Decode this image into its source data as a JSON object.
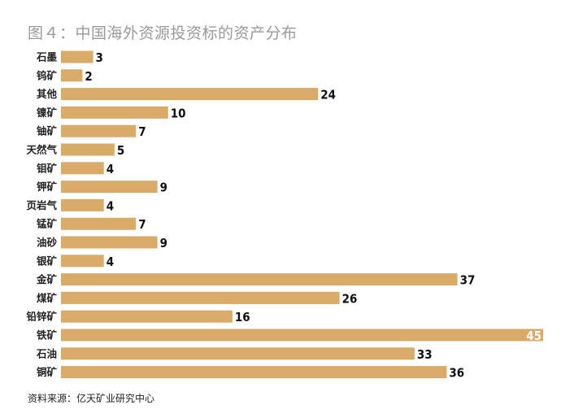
{
  "title": "图４：中国海外资源投资标的资产分布",
  "source": "资料来源：亿天矿业研究中心",
  "chart_data": {
    "type": "bar",
    "orientation": "horizontal",
    "title": "图４：中国海外资源投资标的资产分布",
    "categories": [
      "石墨",
      "钨矿",
      "其他",
      "镍矿",
      "铀矿",
      "天然气",
      "钼矿",
      "钾矿",
      "页岩气",
      "锰矿",
      "油砂",
      "银矿",
      "金矿",
      "煤矿",
      "铅锌矿",
      "铁矿",
      "石油",
      "铜矿"
    ],
    "values": [
      3,
      2,
      24,
      10,
      7,
      5,
      4,
      9,
      4,
      7,
      9,
      4,
      37,
      26,
      16,
      45,
      33,
      36
    ],
    "xlim": [
      0,
      45
    ],
    "bar_color": "#d9ab69",
    "grid": false,
    "data_labels": true
  }
}
